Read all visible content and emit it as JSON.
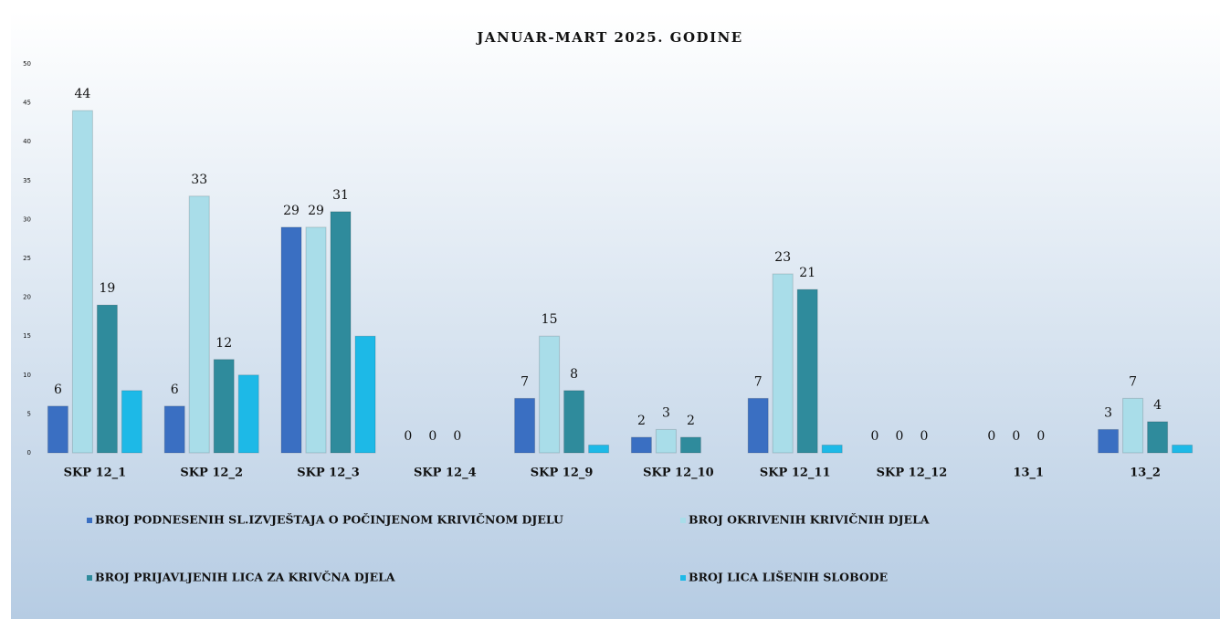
{
  "chart_data": {
    "type": "bar",
    "title": "JANUAR-MART 2025. GODINE",
    "categories": [
      "SKP  12_1",
      "SKP  12_2",
      "SKP  12_3",
      "SKP  12_4",
      "SKP  12_9",
      "SKP  12_10",
      "SKP  12_11",
      "SKP 12_12",
      "13_1",
      "13_2"
    ],
    "series": [
      {
        "name": "BROJ PODNESENIH SL.IZVJEŠTAJA O POČINJENOM KRIVIČNOM DJELU",
        "color": "#3a6fc2",
        "data_labels": true,
        "values": [
          6,
          6,
          29,
          0,
          7,
          2,
          7,
          0,
          0,
          3
        ]
      },
      {
        "name": "BROJ OKRIVENIH KRIVIČNIH DJELA",
        "color": "#a9dde9",
        "data_labels": true,
        "values": [
          44,
          33,
          29,
          0,
          15,
          3,
          23,
          0,
          0,
          7
        ]
      },
      {
        "name": "BROJ PRIJAVLJENIH LICA ZA KRIVČNA DJELA",
        "color": "#2f8b9c",
        "data_labels": true,
        "values": [
          19,
          12,
          31,
          0,
          8,
          2,
          21,
          0,
          0,
          4
        ]
      },
      {
        "name": "BROJ LICA LIŠENIH SLOBODE",
        "color": "#1db9e7",
        "data_labels": false,
        "values": [
          8,
          10,
          15,
          0,
          1,
          0,
          1,
          0,
          0,
          1
        ]
      }
    ],
    "ylim": [
      0,
      50
    ],
    "yticks": [
      0,
      5,
      10,
      15,
      20,
      25,
      30,
      35,
      40,
      45,
      50
    ],
    "grid": false
  }
}
